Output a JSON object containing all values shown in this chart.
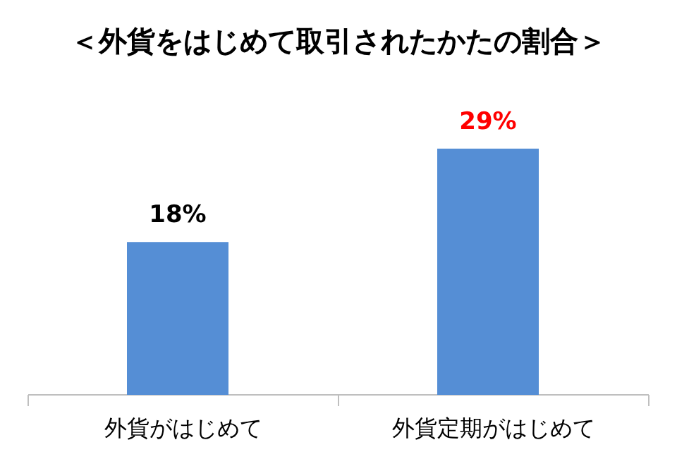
{
  "chart_data": {
    "type": "bar",
    "title": "＜外貨をはじめて取引されたかたの割合＞",
    "categories": [
      "外貨がはじめて",
      "外貨定期がはじめて"
    ],
    "values": [
      18,
      29
    ],
    "color": "#558ed5",
    "value_labels": [
      "18%",
      "29%"
    ]
  }
}
